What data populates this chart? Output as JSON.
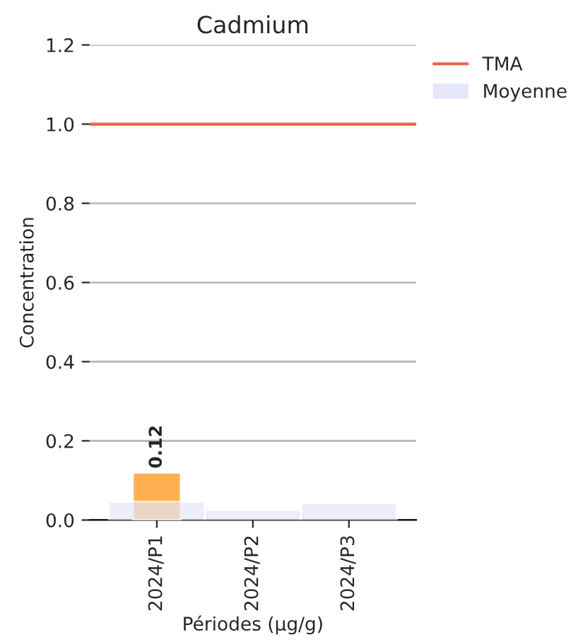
{
  "chart_data": {
    "type": "bar",
    "title": "Cadmium",
    "xlabel": "Périodes (µg/g)",
    "ylabel": "Concentration",
    "categories": [
      "2024/P1",
      "2024/P2",
      "2024/P3"
    ],
    "series": [
      {
        "name": "Moyenne",
        "color": "#e6e6fa",
        "values": [
          0.046,
          0.025,
          0.043
        ]
      },
      {
        "color": "#ffb052",
        "values": [
          0.12,
          null,
          null
        ],
        "value_labels": [
          "0.12",
          null,
          null
        ]
      }
    ],
    "ref_lines": [
      {
        "axis": "y",
        "value": 1.0,
        "label": "TMA",
        "color": "#f0604d"
      }
    ],
    "ylim": [
      0,
      1.2
    ],
    "yticks": [
      {
        "value": 0,
        "label": "0.0"
      },
      0.2,
      0.4,
      0.6,
      0.8,
      {
        "value": 1.0,
        "label": "1.0"
      },
      1.2
    ],
    "grid": "y",
    "legend": "top right"
  }
}
